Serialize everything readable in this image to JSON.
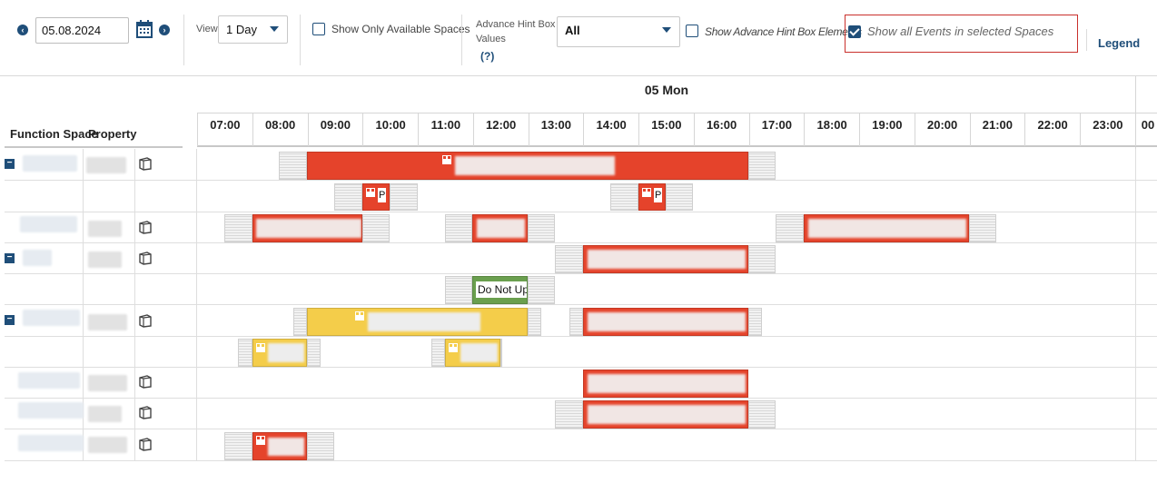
{
  "toolbar": {
    "date_value": "05.08.2024",
    "view_label": "View",
    "view_value": "1 Day",
    "show_available_label": "Show Only Available Spaces",
    "hint_label_1": "Advance Hint Box",
    "hint_label_2": "Values",
    "hint_help": "(?)",
    "hint_value": "All",
    "show_hint_elements_label": "Show Advance Hint Box Elements",
    "show_all_events_label": "Show all Events in selected Spaces",
    "legend_label": "Legend"
  },
  "grid": {
    "day_label": "05 Mon",
    "col_function_space": "Function Space",
    "col_property": "Property",
    "hours": [
      "07:00",
      "08:00",
      "09:00",
      "10:00",
      "11:00",
      "12:00",
      "13:00",
      "14:00",
      "15:00",
      "16:00",
      "17:00",
      "18:00",
      "19:00",
      "20:00",
      "21:00",
      "22:00",
      "23:00",
      "00"
    ]
  },
  "events": {
    "p_label": "P",
    "do_not_label": "Do Not Upc"
  },
  "colors": {
    "accent": "#1f4e79",
    "event_red": "#e5432b",
    "event_yellow": "#f4cd4a",
    "event_green": "#6a9f4e",
    "highlight": "#c9302c"
  }
}
